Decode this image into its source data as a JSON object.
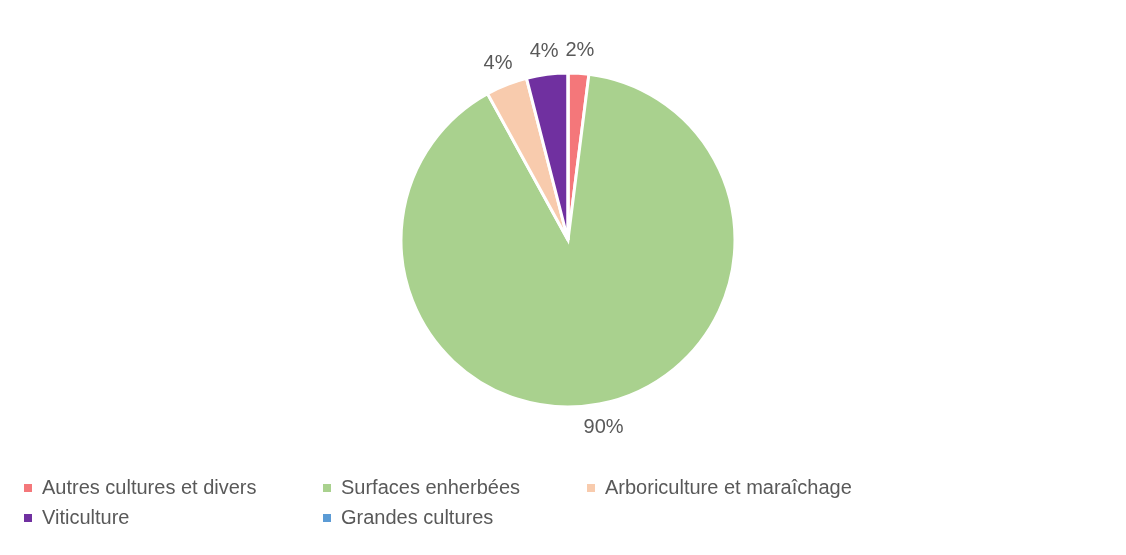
{
  "chart_data": {
    "type": "pie",
    "categories": [
      "Autres cultures et divers",
      "Surfaces enherbées",
      "Arboriculture et maraîchage",
      "Viticulture",
      "Grandes cultures"
    ],
    "values": [
      2,
      90,
      4,
      4,
      0
    ],
    "colors": [
      "#f4777a",
      "#a9d18e",
      "#f8cbad",
      "#7030a0",
      "#5b9bd5"
    ],
    "value_labels": [
      "2%",
      "90%",
      "4%",
      "4%",
      null
    ],
    "legend": "bottom"
  }
}
